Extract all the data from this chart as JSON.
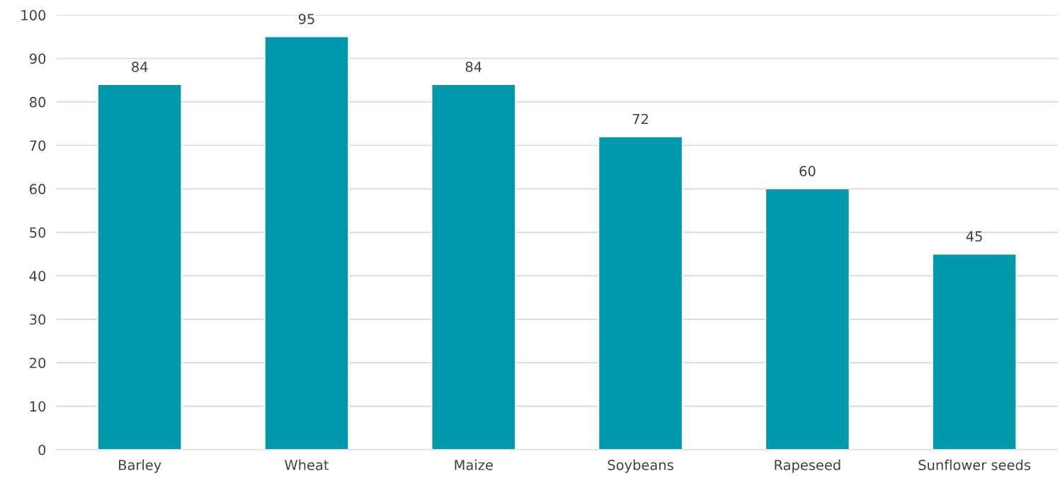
{
  "chart_data": {
    "type": "bar",
    "categories": [
      "Barley",
      "Wheat",
      "Maize",
      "Soybeans",
      "Rapeseed",
      "Sunflower seeds"
    ],
    "values": [
      84,
      95,
      84,
      72,
      60,
      45
    ],
    "color": "#0099ab",
    "ylim": [
      0,
      100
    ],
    "yticks": [
      0,
      10,
      20,
      30,
      40,
      50,
      60,
      70,
      80,
      90,
      100
    ],
    "grid": "y",
    "data_labels": true
  }
}
